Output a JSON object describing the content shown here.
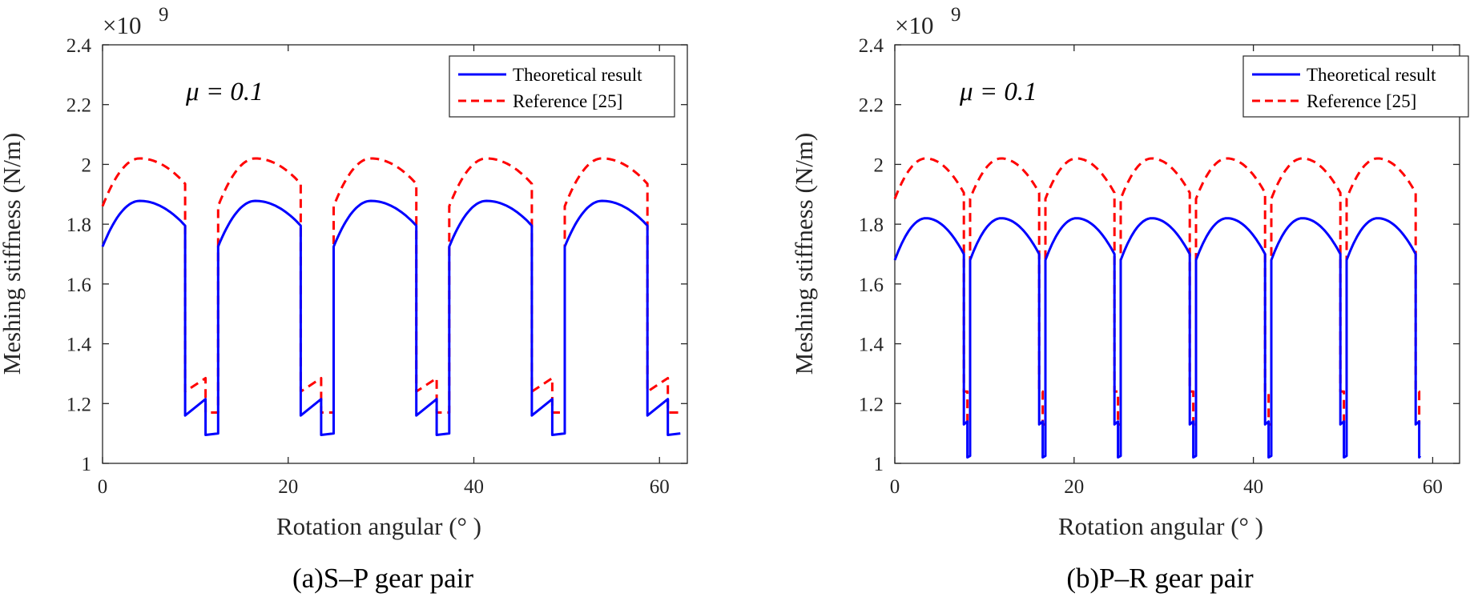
{
  "chart_data": [
    {
      "id": "a",
      "type": "line",
      "caption": "(a)S–P gear pair",
      "annotation": "μ = 0.1",
      "exponent_label": "×10",
      "exponent_power": "9",
      "xlabel": "Rotation angular (° )",
      "ylabel": "Meshing stiffness (N/m)",
      "xlim": [
        0,
        63
      ],
      "ylim": [
        1.0,
        2.4
      ],
      "xticks": [
        0,
        20,
        40,
        60
      ],
      "yticks": [
        1,
        1.2,
        1.4,
        1.6,
        1.8,
        2,
        2.2,
        2.4
      ],
      "ytick_labels": [
        "1",
        "1.2",
        "1.4",
        "1.6",
        "1.8",
        "2",
        "2.2",
        "2.4"
      ],
      "grid": false,
      "legend_position": "top-right",
      "series": [
        {
          "name": "Theoretical result",
          "color": "#0000ff",
          "style": "solid",
          "model": {
            "period": 12.45,
            "cycles": 5,
            "x_end": 62.3,
            "x_double_end": 8.9,
            "dbl_start": 1.725,
            "dbl_peak": 1.878,
            "dbl_end": 1.795,
            "sing_start": 1.16,
            "sing_mid": 1.215,
            "x_sing_break": 11.1,
            "sing_low": 1.095,
            "sing_low_end": 1.1
          }
        },
        {
          "name": "Reference [25]",
          "color": "#ff0000",
          "style": "dashed",
          "model": {
            "period": 12.45,
            "cycles": 5,
            "x_end": 62.3,
            "x_double_end": 8.9,
            "dbl_start": 1.86,
            "dbl_peak": 2.02,
            "dbl_end": 1.935,
            "sing_start": 1.24,
            "sing_mid": 1.285,
            "x_sing_break": 11.1,
            "sing_low": 1.17,
            "sing_low_end": 1.17
          }
        }
      ]
    },
    {
      "id": "b",
      "type": "line",
      "caption": "(b)P–R gear pair",
      "annotation": "μ = 0.1",
      "exponent_label": "×10",
      "exponent_power": "9",
      "xlabel": "Rotation angular (° )",
      "ylabel": "Meshing stiffness (N/m)",
      "xlim": [
        0,
        63
      ],
      "ylim": [
        1.0,
        2.4
      ],
      "xticks": [
        0,
        20,
        40,
        60
      ],
      "yticks": [
        1,
        1.2,
        1.4,
        1.6,
        1.8,
        2,
        2.2,
        2.4
      ],
      "ytick_labels": [
        "1",
        "1.2",
        "1.4",
        "1.6",
        "1.8",
        "2",
        "2.2",
        "2.4"
      ],
      "grid": false,
      "legend_position": "top-right",
      "series": [
        {
          "name": "Theoretical result",
          "color": "#0000ff",
          "style": "solid",
          "model": {
            "period": 8.4,
            "cycles": 7,
            "x_end": 58.6,
            "x_double_end": 7.7,
            "dbl_start": 1.68,
            "dbl_peak": 1.82,
            "dbl_end": 1.7,
            "sing_start": 1.13,
            "sing_mid": 1.14,
            "x_sing_break": 8.1,
            "sing_low": 1.02,
            "sing_low_end": 1.025
          }
        },
        {
          "name": "Reference [25]",
          "color": "#ff0000",
          "style": "dashed",
          "model": {
            "period": 8.4,
            "cycles": 7,
            "x_end": 58.6,
            "x_double_end": 7.7,
            "dbl_start": 1.885,
            "dbl_peak": 2.02,
            "dbl_end": 1.905,
            "sing_start": 1.24,
            "sing_mid": 1.24,
            "x_sing_break": 8.1,
            "sing_low": 1.13,
            "sing_low_end": 1.13
          }
        }
      ]
    }
  ]
}
